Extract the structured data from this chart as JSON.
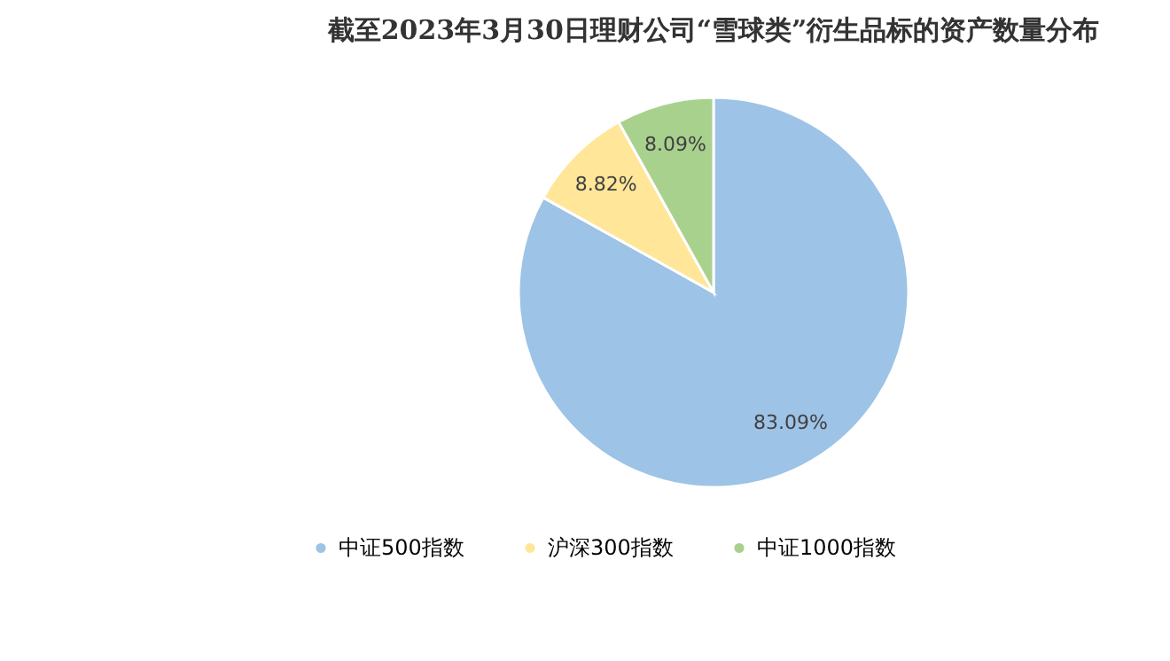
{
  "chart_data": {
    "type": "pie",
    "title": "截至2023年3月30日理财公司“雪球类”衍生品标的资产数量分布",
    "categories": [
      "中证500指数",
      "沪深300指数",
      "中证1000指数"
    ],
    "values": [
      83.09,
      8.82,
      8.09
    ],
    "colors": [
      "#9dc3e6",
      "#ffe699",
      "#a9d18e"
    ],
    "value_labels": [
      "83.09%",
      "8.82%",
      "8.09%"
    ],
    "legend": "bottom"
  }
}
